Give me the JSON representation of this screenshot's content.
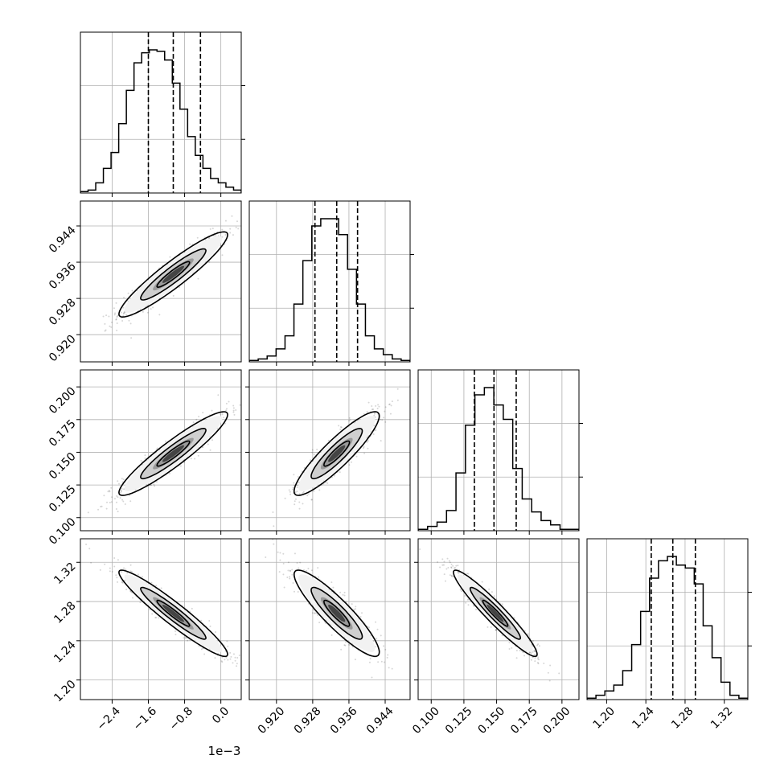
{
  "chart_data": {
    "type": "corner",
    "title": "",
    "offset_text": "1e−3",
    "parameters": [
      {
        "index": 0,
        "ticks": [
          -2.4,
          -1.6,
          -0.8,
          0.0
        ],
        "tick_labels": [
          "−2.4",
          "−1.6",
          "−0.8",
          "0.0"
        ],
        "range": [
          -3.1,
          0.45
        ],
        "quantiles": [
          -1.6,
          -1.05,
          -0.45
        ],
        "mean": -1.05,
        "sd": 0.6,
        "hist": [
          1,
          2,
          7,
          17,
          28,
          48,
          71,
          90,
          97,
          99,
          98,
          92,
          76,
          58,
          39,
          26,
          17,
          10,
          7,
          4,
          2
        ]
      },
      {
        "index": 1,
        "ticks": [
          0.92,
          0.928,
          0.936,
          0.944
        ],
        "tick_labels": [
          "0.920",
          "0.928",
          "0.936",
          "0.944"
        ],
        "range": [
          0.914,
          0.9495
        ],
        "quantiles": [
          0.9285,
          0.9333,
          0.9379
        ],
        "mean": 0.9333,
        "sd": 0.0047,
        "hist": [
          1,
          2,
          4,
          9,
          18,
          40,
          70,
          94,
          99,
          99,
          88,
          64,
          40,
          18,
          9,
          5,
          2,
          1
        ]
      },
      {
        "index": 2,
        "ticks": [
          0.1,
          0.125,
          0.15,
          0.175,
          0.2
        ],
        "tick_labels": [
          "0.100",
          "0.125",
          "0.150",
          "0.175",
          "0.200"
        ],
        "range": [
          0.09,
          0.213
        ],
        "quantiles": [
          0.133,
          0.148,
          0.165
        ],
        "mean": 0.149,
        "sd": 0.016,
        "hist": [
          1,
          3,
          6,
          14,
          40,
          73,
          94,
          99,
          87,
          77,
          43,
          22,
          13,
          7,
          4,
          1,
          1
        ]
      },
      {
        "index": 3,
        "ticks": [
          1.2,
          1.24,
          1.28,
          1.32
        ],
        "tick_labels": [
          "1.20",
          "1.24",
          "1.28",
          "1.32"
        ],
        "range": [
          1.18,
          1.344
        ],
        "quantiles": [
          1.2455,
          1.2675,
          1.2905
        ],
        "mean": 1.268,
        "sd": 0.022,
        "hist": [
          1,
          3,
          6,
          10,
          20,
          38,
          61,
          84,
          96,
          99,
          93,
          91,
          80,
          51,
          29,
          12,
          3,
          1
        ]
      }
    ],
    "correlations": {
      "1_0": 0.93,
      "2_0": 0.93,
      "2_1": 0.9,
      "3_0": -0.95,
      "3_1": -0.9,
      "3_2": -0.95
    },
    "grid": true
  }
}
